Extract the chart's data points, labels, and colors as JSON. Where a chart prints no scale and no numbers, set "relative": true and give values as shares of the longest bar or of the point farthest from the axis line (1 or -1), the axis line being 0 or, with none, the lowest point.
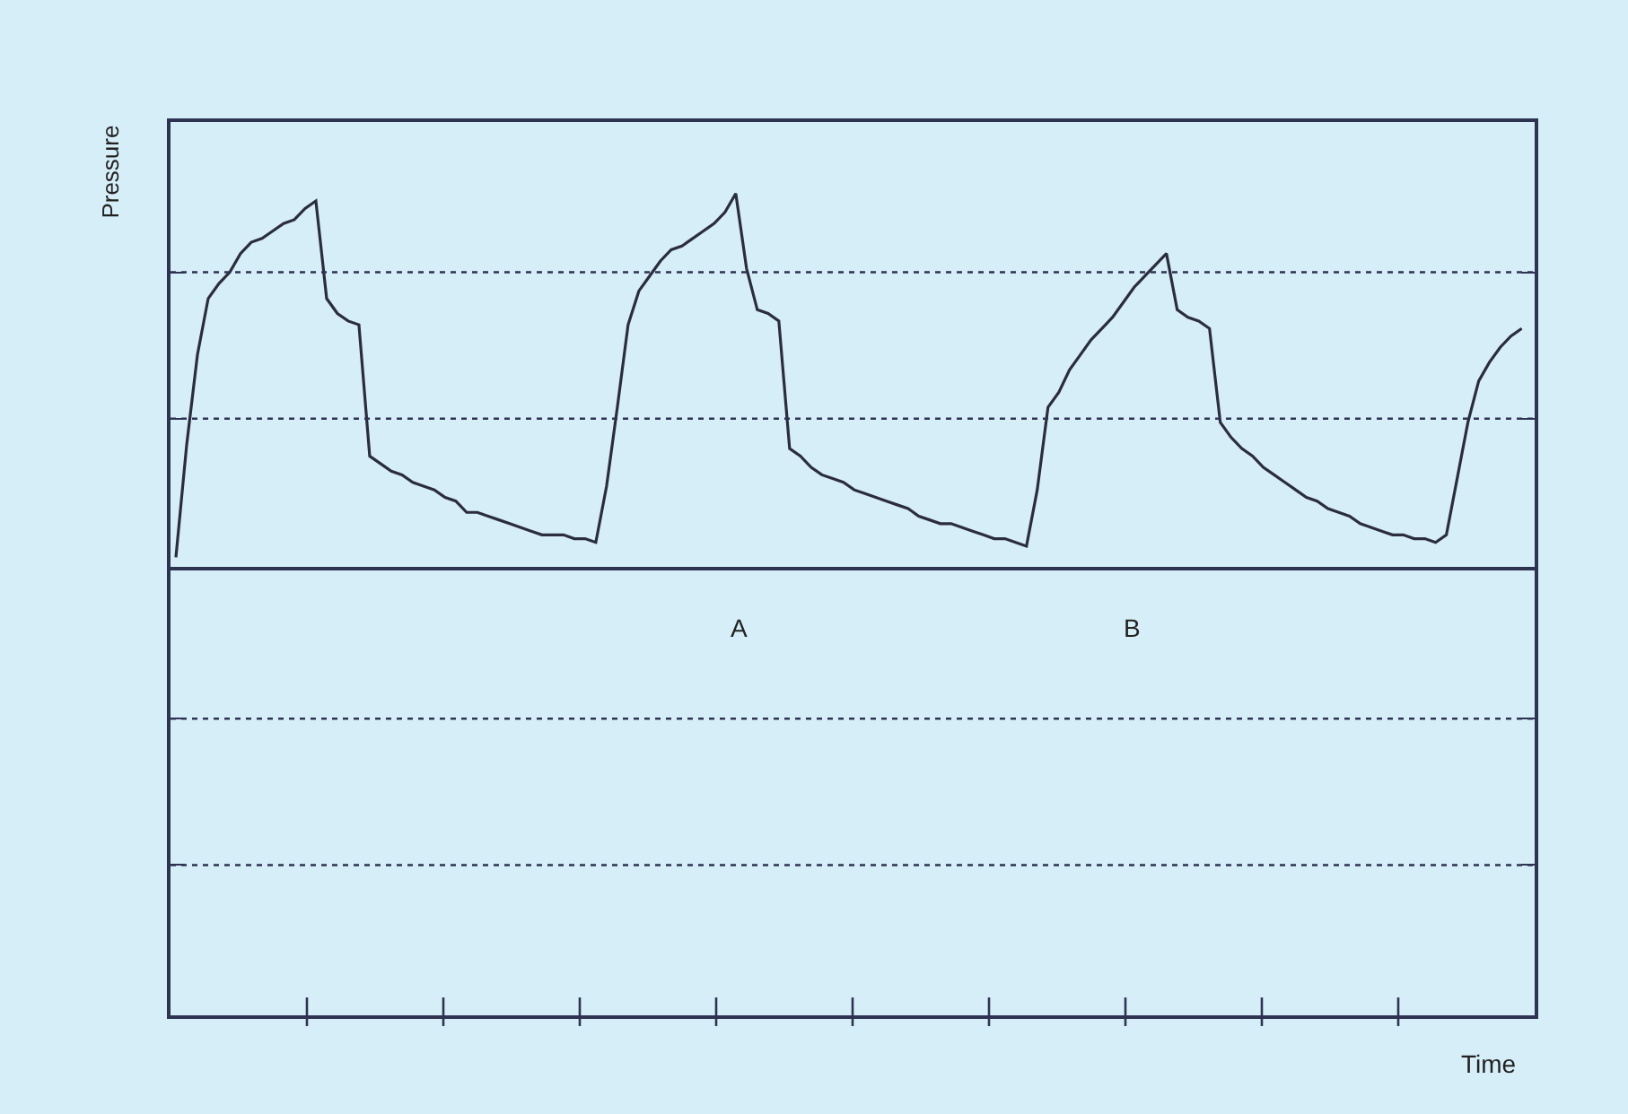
{
  "chart_data": {
    "type": "line",
    "relative": true,
    "line_style": "solid",
    "ref_lines": [
      {
        "axis": "y",
        "value": 0.79,
        "line_style": "dotted"
      },
      {
        "axis": "y",
        "value": 0.4,
        "line_style": "dotted"
      },
      {
        "axis": "y",
        "value": -0.4,
        "line_style": "dotted"
      },
      {
        "axis": "y",
        "value": -0.79,
        "line_style": "dotted"
      }
    ],
    "ylabel": "Pressure",
    "annotations": [
      "A",
      "B",
      "Time"
    ],
    "color": "#2b2d3c",
    "categories": [
      null,
      null,
      null,
      null,
      null,
      null,
      null,
      null,
      null,
      null,
      null,
      null,
      null,
      null,
      null,
      null,
      null,
      null,
      null,
      null,
      null,
      null,
      null,
      null,
      null,
      null,
      null,
      null,
      null,
      null,
      null,
      null,
      null,
      null,
      null,
      null,
      null,
      null,
      null,
      null,
      null,
      null,
      null,
      null,
      null,
      null,
      null,
      null,
      null,
      null,
      null,
      null,
      null,
      null,
      null,
      null,
      null,
      null,
      null,
      null,
      null,
      null,
      null,
      null,
      null,
      null,
      null,
      null,
      null,
      null,
      null,
      null,
      null,
      null,
      null,
      null,
      null,
      null,
      null,
      null,
      null,
      null,
      null,
      null,
      null,
      null,
      null,
      null,
      null,
      null,
      null,
      null,
      null,
      null,
      null,
      null,
      null,
      null,
      null,
      null,
      null,
      null,
      null,
      null,
      null,
      null,
      null,
      null,
      null,
      null,
      null,
      null,
      null,
      null,
      null,
      null,
      null,
      null,
      null,
      null,
      null,
      null,
      null,
      null,
      null,
      null
    ],
    "values": [
      0.03,
      0.33,
      0.57,
      0.72,
      0.76,
      0.79,
      0.84,
      0.87,
      0.88,
      0.9,
      0.92,
      0.93,
      0.96,
      0.98,
      0.72,
      0.68,
      0.66,
      0.65,
      0.3,
      0.28,
      0.26,
      0.25,
      0.23,
      0.22,
      0.21,
      0.19,
      0.18,
      0.15,
      0.15,
      0.14,
      0.13,
      0.12,
      0.11,
      0.1,
      0.09,
      0.09,
      0.09,
      0.08,
      0.08,
      0.07,
      0.22,
      0.43,
      0.65,
      0.74,
      0.78,
      0.82,
      0.85,
      0.86,
      0.88,
      0.9,
      0.92,
      0.95,
      1.0,
      0.8,
      0.69,
      0.68,
      0.66,
      0.32,
      0.3,
      0.27,
      0.25,
      0.24,
      0.23,
      0.21,
      0.2,
      0.19,
      0.18,
      0.17,
      0.16,
      0.14,
      0.13,
      0.12,
      0.12,
      0.11,
      0.1,
      0.09,
      0.08,
      0.08,
      0.07,
      0.06,
      0.21,
      0.43,
      0.47,
      0.53,
      0.57,
      0.61,
      0.64,
      0.67,
      0.71,
      0.75,
      0.78,
      0.81,
      0.84,
      0.69,
      0.67,
      0.66,
      0.64,
      0.39,
      0.35,
      0.32,
      0.3,
      0.27,
      0.25,
      0.23,
      0.21,
      0.19,
      0.18,
      0.16,
      0.15,
      0.14,
      0.12,
      0.11,
      0.1,
      0.09,
      0.09,
      0.08,
      0.08,
      0.07,
      0.09,
      0.24,
      0.39,
      0.5,
      0.55,
      0.59,
      0.62,
      0.64
    ]
  }
}
